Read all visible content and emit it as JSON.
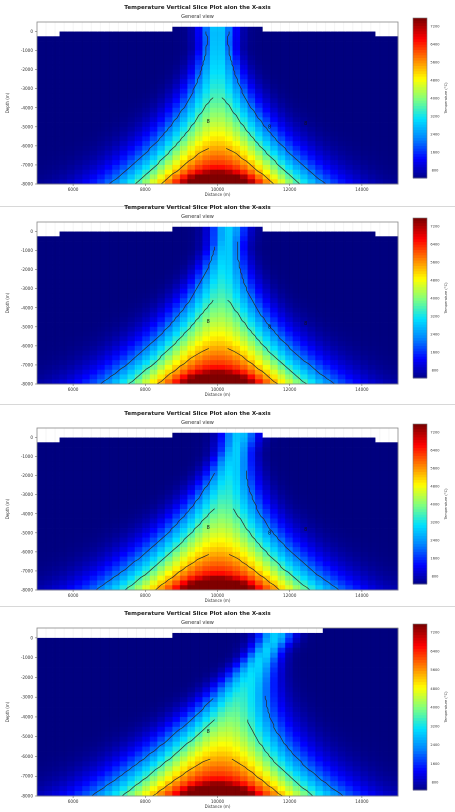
{
  "chart_data": [
    {
      "type": "heatmap",
      "title": "Temperature Vertical Slice Plot alon the X-axis",
      "subtitle": "General view",
      "xlabel": "Distance (m)",
      "ylabel": "Depth (m)",
      "colorbar_label": "Temperature (°C)",
      "xlim": [
        5000,
        15000
      ],
      "ylim": [
        -8000,
        500
      ],
      "x_ticks": [
        "6000",
        "8000",
        "10000",
        "12000",
        "14000"
      ],
      "y_ticks": [
        "0",
        "-1000",
        "-2000",
        "-3000",
        "-4000",
        "-5000",
        "-6000",
        "-7000",
        "-8000"
      ],
      "colorbar_ticks": [
        "7200",
        "6400",
        "5600",
        "4800",
        "4000",
        "3200",
        "2400",
        "1600",
        "800"
      ],
      "contour_labels": [
        "8",
        "8",
        "8"
      ],
      "plume": {
        "center_x": 10000,
        "spread_km": 2.0,
        "max_temp": 7200,
        "bend": 0.0
      }
    },
    {
      "type": "heatmap",
      "title": "Temperature Vertical Slice Plot alon the X-axis",
      "subtitle": "General view",
      "xlabel": "Distance (m)",
      "ylabel": "Depth (m)",
      "colorbar_label": "Temperature (°C)",
      "xlim": [
        5000,
        15000
      ],
      "ylim": [
        -8000,
        500
      ],
      "x_ticks": [
        "6000",
        "8000",
        "10000",
        "12000",
        "14000"
      ],
      "y_ticks": [
        "0",
        "-1000",
        "-2000",
        "-3000",
        "-4000",
        "-5000",
        "-6000",
        "-7000",
        "-8000"
      ],
      "colorbar_ticks": [
        "7200",
        "6400",
        "5600",
        "4800",
        "4000",
        "3200",
        "2400",
        "1600",
        "800"
      ],
      "contour_labels": [
        "8",
        "8",
        "8"
      ],
      "plume": {
        "center_x": 10000,
        "spread_km": 2.2,
        "max_temp": 7200,
        "bend": 0.3
      }
    },
    {
      "type": "heatmap",
      "title": "Temperature Vertical Slice Plot alon the X-axis",
      "subtitle": "General view",
      "xlabel": "Distance (m)",
      "ylabel": "Depth (m)",
      "colorbar_label": "Temperature (°C)",
      "xlim": [
        5000,
        15000
      ],
      "ylim": [
        -8000,
        500
      ],
      "x_ticks": [
        "6000",
        "8000",
        "10000",
        "12000",
        "14000"
      ],
      "y_ticks": [
        "0",
        "-1000",
        "-2000",
        "-3000",
        "-4000",
        "-5000",
        "-6000",
        "-7000",
        "-8000"
      ],
      "colorbar_ticks": [
        "7200",
        "6400",
        "5600",
        "4800",
        "4000",
        "3200",
        "2400",
        "1600",
        "800"
      ],
      "contour_labels": [
        "8",
        "8",
        "8"
      ],
      "plume": {
        "center_x": 10000,
        "spread_km": 2.3,
        "max_temp": 7200,
        "bend": 0.6
      }
    },
    {
      "type": "heatmap",
      "title": "Temperature Vertical Slice Plot alon the X-axis",
      "subtitle": "General view",
      "xlabel": "Distance (m)",
      "ylabel": "Depth (m)",
      "colorbar_label": "Temperature (°C)",
      "xlim": [
        5000,
        15000
      ],
      "ylim": [
        -8000,
        500
      ],
      "x_ticks": [
        "6000",
        "8000",
        "10000",
        "12000",
        "14000"
      ],
      "y_ticks": [
        "0",
        "-1000",
        "-2000",
        "-3000",
        "-4000",
        "-5000",
        "-6000",
        "-7000",
        "-8000"
      ],
      "colorbar_ticks": [
        "7200",
        "6400",
        "5600",
        "4800",
        "4000",
        "3200",
        "2400",
        "1600",
        "800"
      ],
      "contour_labels": [
        "8"
      ],
      "plume": {
        "center_x": 10000,
        "spread_km": 2.4,
        "max_temp": 7200,
        "bend": 1.6
      }
    }
  ],
  "colors": {
    "colormap": [
      "#00007f",
      "#0000ff",
      "#0080ff",
      "#00e0ff",
      "#7fff7f",
      "#ffff00",
      "#ff8000",
      "#ff0000",
      "#7f0000"
    ],
    "contour": "#2a2a2a",
    "frame": "#888888"
  }
}
